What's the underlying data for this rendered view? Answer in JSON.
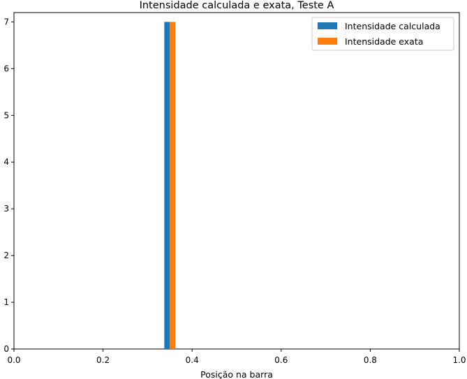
{
  "chart_data": {
    "type": "bar",
    "title": "Intensidade calculada e exata, Teste A",
    "xlabel": "Posição na barra",
    "ylabel": "",
    "xlim": [
      0.0,
      1.0
    ],
    "ylim": [
      0,
      7.2
    ],
    "xticks": [
      "0.0",
      "0.2",
      "0.4",
      "0.6",
      "0.8",
      "1.0"
    ],
    "yticks": [
      "0",
      "1",
      "2",
      "3",
      "4",
      "5",
      "6",
      "7"
    ],
    "legend_position": "top-right",
    "grid": false,
    "series": [
      {
        "name": "Intensidade calculada",
        "color": "#1f77b4",
        "x": 0.3438,
        "width": 0.0125,
        "value": 7
      },
      {
        "name": "Intensidade exata",
        "color": "#ff7f0e",
        "x": 0.3563,
        "width": 0.0125,
        "value": 7
      }
    ]
  }
}
